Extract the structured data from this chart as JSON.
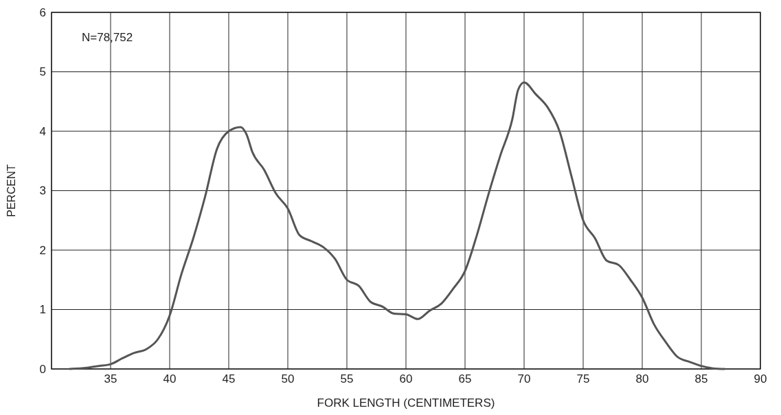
{
  "chart_data": {
    "type": "line",
    "xlabel": "FORK LENGTH (CENTIMETERS)",
    "ylabel": "PERCENT",
    "annotations": [
      "N=78,752"
    ],
    "x": [
      31.5,
      33,
      34,
      35,
      36,
      37,
      38,
      39,
      40,
      41,
      42,
      43,
      44,
      45,
      46,
      46.5,
      47,
      48,
      49,
      50,
      51,
      52,
      53,
      54,
      55,
      56,
      57,
      58,
      59,
      60,
      61,
      62,
      63,
      64,
      65,
      66,
      67,
      68,
      69,
      69.5,
      70,
      71,
      72,
      73,
      74,
      75,
      76,
      77,
      78,
      79,
      80,
      81,
      82,
      83,
      84,
      85,
      86,
      87
    ],
    "series": [
      {
        "color": "#555555",
        "values": [
          0,
          0.02,
          0.05,
          0.08,
          0.18,
          0.27,
          0.33,
          0.5,
          0.9,
          1.6,
          2.2,
          2.9,
          3.7,
          4.0,
          4.07,
          3.95,
          3.65,
          3.35,
          2.95,
          2.7,
          2.25,
          2.15,
          2.05,
          1.85,
          1.5,
          1.4,
          1.13,
          1.05,
          0.93,
          0.92,
          0.84,
          0.98,
          1.1,
          1.35,
          1.65,
          2.25,
          2.95,
          3.6,
          4.2,
          4.7,
          4.82,
          4.62,
          4.4,
          4.0,
          3.25,
          2.5,
          2.2,
          1.82,
          1.75,
          1.5,
          1.2,
          0.75,
          0.45,
          0.2,
          0.12,
          0.05,
          0.01,
          0
        ]
      }
    ],
    "xlim": [
      30,
      90
    ],
    "xticks": [
      {
        "value": 30,
        "label": null
      },
      35,
      40,
      45,
      50,
      55,
      60,
      65,
      70,
      75,
      80,
      85,
      90
    ],
    "ylim": [
      0,
      6
    ],
    "yticks": [
      0,
      1,
      2,
      3,
      4,
      5,
      6
    ],
    "grid": true,
    "marker": "none",
    "line_style": "solid"
  }
}
